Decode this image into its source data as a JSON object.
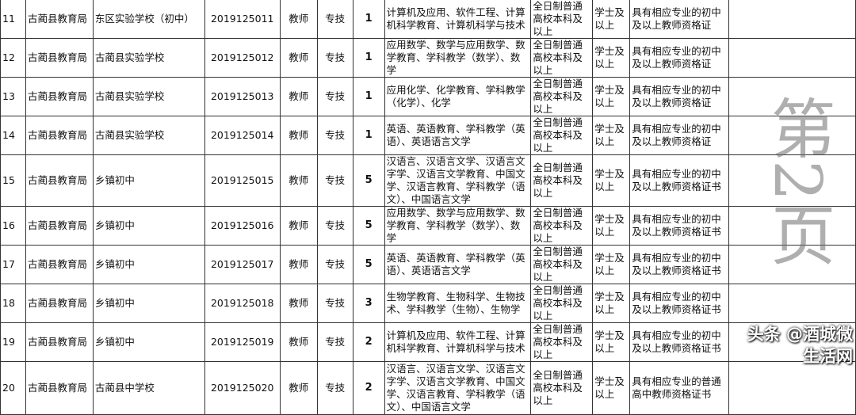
{
  "rows": [
    {
      "no": "11",
      "bureau": "古蔺县教育局",
      "school": "东区实验学校（初中）",
      "code": "2019125011",
      "post": "教师",
      "type": "专技",
      "count": "1",
      "major": "计算机及应用、软件工程、计算机科学教育、计算机科学与技术",
      "education": "全日制普通高校本科及以上",
      "degree": "学士及以上",
      "cert": "具有相应专业的初中及以上教师资格证"
    },
    {
      "no": "12",
      "bureau": "古蔺县教育局",
      "school": "古蔺县实验学校",
      "code": "2019125012",
      "post": "教师",
      "type": "专技",
      "count": "1",
      "major": "应用数学、数学与应用数学、数学教育、学科教学（数学）、数学",
      "education": "全日制普通高校本科及以上",
      "degree": "学士及以上",
      "cert": "具有相应专业的初中及以上教师资格证"
    },
    {
      "no": "13",
      "bureau": "古蔺县教育局",
      "school": "古蔺县实验学校",
      "code": "2019125013",
      "post": "教师",
      "type": "专技",
      "count": "1",
      "major": "应用化学、化学教育、学科教学（化学）、化学",
      "education": "全日制普通高校本科及以上",
      "degree": "学士及以上",
      "cert": "具有相应专业的初中及以上教师资格证"
    },
    {
      "no": "14",
      "bureau": "古蔺县教育局",
      "school": "古蔺县实验学校",
      "code": "2019125014",
      "post": "教师",
      "type": "专技",
      "count": "1",
      "major": "英语、英语教育、学科教学（英语）、英语语言文学",
      "education": "全日制普通高校本科及以上",
      "degree": "学士及以上",
      "cert": "具有相应专业的初中及以上教师资格证"
    },
    {
      "no": "15",
      "bureau": "古蔺县教育局",
      "school": "乡镇初中",
      "code": "2019125015",
      "post": "教师",
      "type": "专技",
      "count": "5",
      "major": "汉语言、汉语言文学、汉语言文字学、汉语言文学教育、中国文学、汉语言教育、学科教学（语文）、中国语言文学",
      "education": "全日制普通高校本科及以上",
      "degree": "学士及以上",
      "cert": "具有相应专业的初中及以上教师资格证书"
    },
    {
      "no": "16",
      "bureau": "古蔺县教育局",
      "school": "乡镇初中",
      "code": "2019125016",
      "post": "教师",
      "type": "专技",
      "count": "5",
      "major": "应用数学、数学与应用数学、数学教育、学科教学（数学）、数学",
      "education": "全日制普通高校本科及以上",
      "degree": "学士及以上",
      "cert": "具有相应专业的初中及以上教师资格证书"
    },
    {
      "no": "17",
      "bureau": "古蔺县教育局",
      "school": "乡镇初中",
      "code": "2019125017",
      "post": "教师",
      "type": "专技",
      "count": "5",
      "major": "英语、英语教育、学科教学（英语）、英语语言文学",
      "education": "全日制普通高校本科及以上",
      "degree": "学士及以上",
      "cert": "具有相应专业的初中及以上教师资格证书"
    },
    {
      "no": "18",
      "bureau": "古蔺县教育局",
      "school": "乡镇初中",
      "code": "2019125018",
      "post": "教师",
      "type": "专技",
      "count": "3",
      "major": "生物学教育、生物科学、生物技术、学科教学（生物）、生物学",
      "education": "全日制普通高校本科及以上",
      "degree": "学士及以上",
      "cert": "具有相应专业的初中及以上教师资格证书"
    },
    {
      "no": "19",
      "bureau": "古蔺县教育局",
      "school": "乡镇初中",
      "code": "2019125019",
      "post": "教师",
      "type": "专技",
      "count": "2",
      "major": "计算机及应用、软件工程、计算机科学教育、计算机科学与技术",
      "education": "全日制普通高校本科及以上",
      "degree": "学士及以上",
      "cert": "具有相应专业的初中及以上教师资格证书"
    },
    {
      "no": "20",
      "bureau": "古蔺县教育局",
      "school": "古蔺县中学校",
      "code": "2019125020",
      "post": "教师",
      "type": "专技",
      "count": "2",
      "major": "汉语言、汉语言文学、汉语言文字学、汉语言文学教育、中国文学、汉语言教育、学科教学（语文）、中国语言文学",
      "education": "全日制普通高校本科及以上",
      "degree": "学士及以上",
      "cert": "具有相应专业的普通高中教师资格证书"
    }
  ],
  "watermark": "第2页",
  "brand": "头条 @酒城微生活网"
}
